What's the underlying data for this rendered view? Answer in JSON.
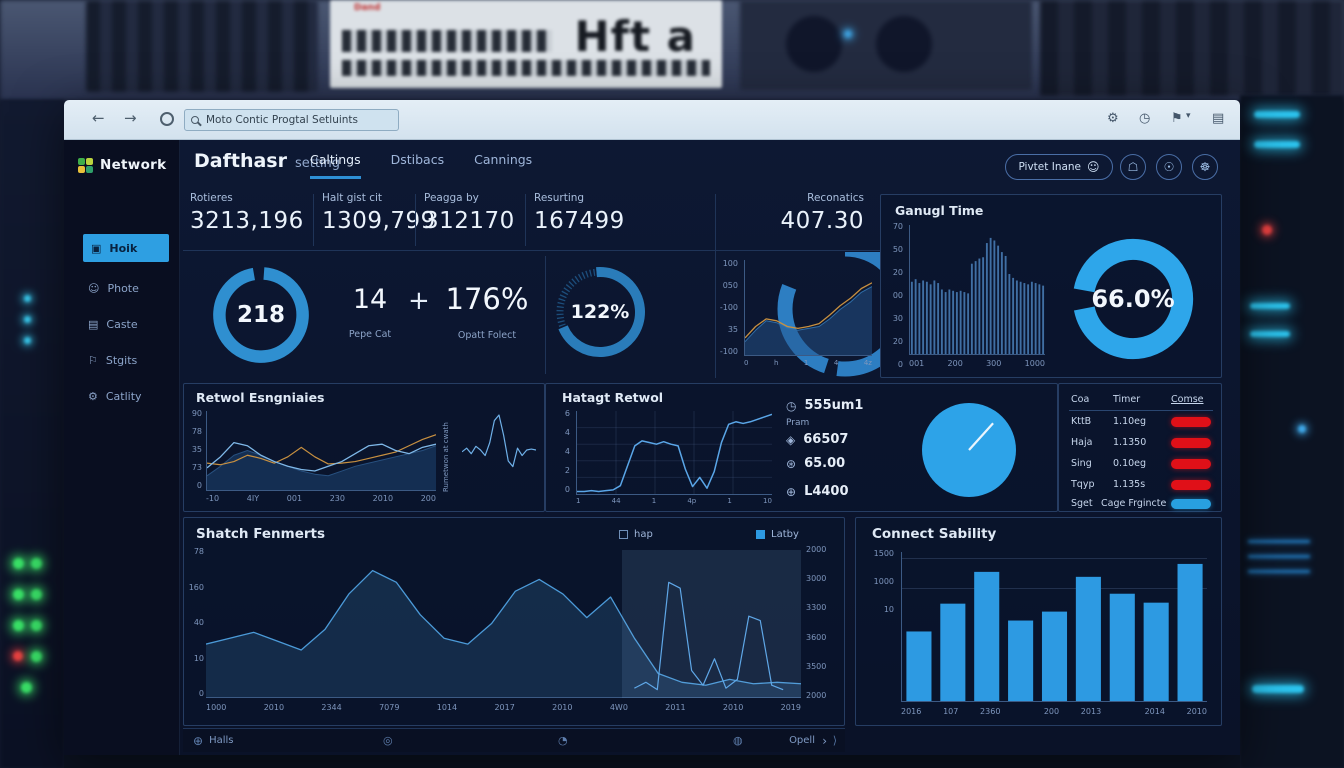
{
  "background": {
    "server_label": "Hft a",
    "rack_label": "Dand"
  },
  "browser": {
    "address": "Moto Contic Progtal Setluints",
    "back": "←",
    "forward": "→",
    "caret": "▾",
    "icons": [
      {
        "name": "gear",
        "glyph": "⚙"
      },
      {
        "name": "clock",
        "glyph": "◷"
      },
      {
        "name": "bookmark",
        "glyph": "⚑"
      },
      {
        "name": "panel",
        "glyph": "▤"
      }
    ]
  },
  "sidebar": {
    "brand": "Network",
    "items": [
      {
        "label": "Hoik",
        "icon": "▣",
        "active": true
      },
      {
        "label": "Phote",
        "icon": "☺"
      },
      {
        "label": "Caste",
        "icon": "▤"
      },
      {
        "label": "Stgits",
        "icon": "⚐"
      },
      {
        "label": "Catlity",
        "icon": "⚙"
      }
    ]
  },
  "header": {
    "title": "Dafthasr",
    "subtitle": "setting",
    "tabs": [
      {
        "label": "Caltings",
        "active": true
      },
      {
        "label": "Dstibacs"
      },
      {
        "label": "Cannings"
      }
    ],
    "profile": {
      "label": "Pivtet Inane",
      "icon": "☺"
    },
    "icon_buttons": [
      {
        "name": "shield",
        "glyph": "☖"
      },
      {
        "name": "user-status",
        "glyph": "☉"
      },
      {
        "name": "globe",
        "glyph": "☸"
      }
    ]
  },
  "stats": [
    {
      "label": "Rotieres",
      "value": "3213,196"
    },
    {
      "label": "Halt gist cit",
      "value": "1309,799"
    },
    {
      "label": "Peagga by",
      "value": "312170"
    },
    {
      "label": "Resurting",
      "value": "167499"
    },
    {
      "label": "Reconatics",
      "value": "407.30"
    }
  ],
  "kpis": {
    "donut_main": {
      "value": "218"
    },
    "count_a": {
      "value": "14",
      "label": "Pepe Cat"
    },
    "plus": "+",
    "count_b": {
      "value": "176%",
      "label": "Opatt Folect"
    },
    "donut_b": {
      "value": "122%"
    },
    "gauge_yticks": [
      "100",
      "050",
      "-100",
      "35",
      "-100"
    ],
    "gauge_xticks": [
      "0",
      "h",
      "1",
      "4",
      "4z"
    ]
  },
  "ganugl": {
    "title": "Ganugl Time",
    "donut_value": "66.0%",
    "yticks": [
      "70",
      "50",
      "20",
      "00",
      "30",
      "20",
      "0"
    ],
    "xticks": [
      "001",
      "200",
      "300",
      "1000"
    ]
  },
  "retwol": {
    "title": "Retwol Esngniaies",
    "yticks": [
      "90",
      "78",
      "35",
      "73",
      "0"
    ],
    "xticks": [
      "-10",
      "4IY",
      "001",
      "230",
      "2010",
      "200"
    ],
    "side_label": "Rumetwon at cwath"
  },
  "hatagt": {
    "title": "Hatagt Retwol",
    "yticks": [
      "6",
      "4",
      "4",
      "2",
      "0"
    ],
    "xticks": [
      "1",
      "44",
      "1",
      "4p",
      "1",
      "10"
    ],
    "metrics": [
      {
        "icon": "◷",
        "value": "555um1",
        "sub": "Pram"
      },
      {
        "icon": "◈",
        "value": "66507"
      },
      {
        "icon": "⊛",
        "value": "65.00"
      },
      {
        "icon": "⊕",
        "value": "L4400"
      }
    ]
  },
  "table": {
    "headers": [
      "Coa",
      "Timer",
      "Comse"
    ],
    "rows": [
      {
        "name": "KttB",
        "value": "1.10eg"
      },
      {
        "name": "Haja",
        "value": "1.1350"
      },
      {
        "name": "Sing",
        "value": "0.10eg"
      },
      {
        "name": "Tqyp",
        "value": "1.135s"
      }
    ],
    "footer": {
      "name": "Sget",
      "value": "Cage Frgincte"
    }
  },
  "shatch": {
    "title": "Shatch Fenmerts",
    "legend": [
      {
        "label": "hap",
        "filled": false
      },
      {
        "label": "Latby",
        "filled": true
      }
    ],
    "yticks_left": [
      "78",
      "160",
      "40",
      "10",
      "0"
    ],
    "yticks_right": [
      "2000",
      "3000",
      "3300",
      "3600",
      "3500",
      "2000"
    ],
    "xticks": [
      "1000",
      "2010",
      "2344",
      "7079",
      "1014",
      "2017",
      "2010",
      "4W0",
      "2011",
      "2010",
      "2019"
    ]
  },
  "connect": {
    "title": "Connect Sability",
    "yticks": [
      "1500",
      "1000",
      "10"
    ],
    "xticks": [
      "2016",
      "107",
      "2360",
      "",
      "200",
      "2013",
      "",
      "2014",
      "2010"
    ]
  },
  "footer": {
    "home": "Halls",
    "right": "Opell",
    "chevron": "›",
    "paren": "⟩",
    "icons": [
      "⊕",
      "◎",
      "◔",
      "◍"
    ]
  },
  "colors": {
    "accent": "#2e9fe2",
    "donut_light": "#2ea6ea",
    "donut_dark": "#2f8fd0",
    "orange_line": "#c89040",
    "red_pill": "#e01018",
    "blue_pill": "#28a0e0"
  },
  "charts": {
    "donut_main": {
      "type": "donut",
      "percent": 96,
      "rotate": -86,
      "stroke": 12,
      "color": "#2f8fd0"
    },
    "donut_b": {
      "type": "donut",
      "percent": 70,
      "rotate": -95,
      "stroke": 10,
      "color": "#2a7cba",
      "tickring": true
    },
    "gauge_ring": {
      "type": "donut",
      "dashes": [
        [
          30,
          2
        ],
        [
          20,
          3
        ],
        [
          26,
          19
        ]
      ],
      "rotate": -90,
      "stroke": 10,
      "color": "#2d7ec2"
    },
    "gauge_area": {
      "type": "multi",
      "series": [
        {
          "values": [
            14,
            26,
            36,
            34,
            28,
            26,
            28,
            30,
            38,
            48,
            56,
            66,
            72
          ],
          "color": "#2e6da8",
          "width": 1,
          "fill": "rgba(36,84,140,0.5)"
        },
        {
          "values": [
            18,
            30,
            38,
            36,
            30,
            28,
            30,
            33,
            42,
            52,
            60,
            70,
            76
          ],
          "color": "#c89040",
          "width": 1.3
        }
      ]
    },
    "ganugl_hist": {
      "type": "hist",
      "color": "#4a7fb8",
      "values": [
        56,
        58,
        55,
        57,
        56,
        54,
        57,
        55,
        50,
        48,
        50,
        49,
        48,
        49,
        48,
        47,
        70,
        72,
        74,
        75,
        86,
        90,
        88,
        84,
        79,
        76,
        62,
        59,
        57,
        56,
        55,
        54,
        56,
        55,
        54,
        53
      ]
    },
    "ganugl_donut": {
      "type": "donut",
      "percent": 94,
      "rotate": 190,
      "stroke": 17,
      "color": "#2ea6ea"
    },
    "retwol": {
      "type": "multi",
      "series": [
        {
          "values": [
            18,
            30,
            44,
            50,
            44,
            36,
            30,
            24,
            20,
            18,
            24,
            30,
            34,
            38,
            42,
            46,
            50,
            56
          ],
          "color": "#27507f",
          "width": 1,
          "fill": "rgba(28,64,108,0.6)"
        },
        {
          "values": [
            34,
            32,
            36,
            44,
            40,
            34,
            42,
            54,
            42,
            33,
            34,
            36,
            40,
            44,
            48,
            56,
            64,
            70
          ],
          "color": "#c89040",
          "width": 1.2
        },
        {
          "values": [
            28,
            42,
            60,
            56,
            44,
            36,
            30,
            26,
            24,
            30,
            36,
            46,
            56,
            58,
            50,
            46,
            54,
            58
          ],
          "color": "#7fb8e8",
          "width": 1.3
        }
      ]
    },
    "retwol_spark": {
      "type": "multi",
      "series": [
        {
          "values": [
            48,
            52,
            46,
            54,
            50,
            44,
            58,
            82,
            88,
            66,
            38,
            32,
            52,
            44,
            50,
            51,
            50
          ],
          "color": "#6fb0e8",
          "width": 1.2
        }
      ]
    },
    "hatagt": {
      "type": "multi",
      "grid": true,
      "series": [
        {
          "values": [
            3,
            3,
            4,
            3,
            4,
            5,
            10,
            34,
            58,
            64,
            62,
            60,
            63,
            60,
            58,
            30,
            9,
            20,
            7,
            27,
            62,
            84,
            87,
            85,
            87,
            90,
            93,
            96
          ],
          "color": "#5aa6e8",
          "width": 1.5
        }
      ]
    },
    "pie": {
      "type": "pie",
      "color": "#2da3e8",
      "needle": -48
    },
    "shatch": {
      "type": "multi",
      "series": [
        {
          "values": [
            36,
            40,
            44,
            38,
            32,
            46,
            70,
            86,
            78,
            56,
            40,
            36,
            50,
            72,
            80,
            70,
            54,
            68,
            40,
            16,
            10,
            8,
            12,
            9,
            10,
            9
          ],
          "color": "#4b9ad8",
          "width": 1.3,
          "fill": "rgba(22,48,79,0.85)"
        },
        {
          "values": [
            6,
            10,
            5,
            78,
            74,
            18,
            8,
            26,
            6,
            12,
            55,
            52,
            8,
            5
          ],
          "x0": 0.72,
          "x1": 0.97,
          "color": "#5aa6e8",
          "width": 1.2
        }
      ]
    },
    "connect": {
      "type": "bars",
      "max": 1500,
      "color": "#2d9ae2",
      "values": [
        700,
        980,
        1300,
        810,
        900,
        1250,
        1080,
        990,
        1380
      ]
    }
  }
}
